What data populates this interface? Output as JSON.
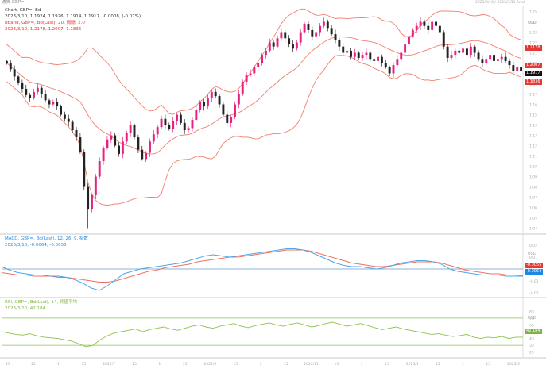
{
  "header": {
    "top_left": "通貨 GBP=",
    "top_right": "2023/3/10 / 2023/3/11 Arial"
  },
  "panels": {
    "price": {
      "title": "Chart, GBP=, Bd",
      "ohlc_line": "2023/3/10, 1.1924, 1.1926, 1.1914, 1.1917, -0.0008, (-0.07%)",
      "bband_line": "Bband, GBP=, Bd(Last), 20, 間隔, 2.0",
      "bband_values": "2023/3/10, 1.2178, 1.2007, 1.1836",
      "yaxis_label": "USD",
      "price_tags": [
        {
          "text": "1.2178",
          "color": "#e53935"
        },
        {
          "text": "1.2007",
          "color": "#e53935"
        },
        {
          "text": "1.1917",
          "color": "#111111"
        },
        {
          "text": "1.1836",
          "color": "#e53935"
        }
      ],
      "colors": {
        "up": "#e6217f",
        "down": "#222222",
        "band": "#f08070"
      }
    },
    "macd": {
      "title": "MACD, GBP=, Bd(Last), 12, 26, 9, 指数",
      "values": "2023/3/10, -0.0064, -0.0055",
      "yaxis_label": "USD",
      "tags": [
        {
          "text": "-0.0055",
          "color": "#e53935"
        },
        {
          "text": "-0.0064",
          "color": "#1e88e5"
        }
      ],
      "colors": {
        "macd": "#4da6e8",
        "signal": "#f07060",
        "zero": "#6699cc"
      }
    },
    "rsi": {
      "title": "RSI, GBP=, Bd(Last), 14, 終値平均",
      "values": "2023/3/10, 42.184",
      "yaxis_label": "USD",
      "tag": {
        "text": "42.184",
        "color": "#7cb342"
      },
      "colors": {
        "line": "#8bc34a",
        "band": "#8bc34a"
      }
    }
  },
  "chart_data": {
    "type": "candlestick",
    "instrument": "GBP=",
    "price_yaxis_ticks": [
      "1.25",
      "1.24",
      "1.23",
      "1.22",
      "1.21",
      "1.20",
      "1.19",
      "1.18",
      "1.17",
      "1.16",
      "1.15",
      "1.14",
      "1.13",
      "1.12",
      "1.11",
      "1.10",
      "1.09",
      "1.08",
      "1.07",
      "1.06",
      "1.05",
      "1.04"
    ],
    "price_ylim": [
      1.035,
      1.255
    ],
    "macd_yaxis_ticks": [
      "0.02",
      "0.01",
      "0",
      "-0.01",
      "-0.02"
    ],
    "rsi_yaxis_ticks": [
      "80",
      "70",
      "60",
      "50",
      "40",
      "30",
      "20"
    ],
    "x_ticks": [
      "29",
      "15",
      "1",
      "15",
      "2022/7",
      "15",
      "1",
      "15",
      "2022/9",
      "15",
      "1",
      "15",
      "2022/11",
      "15",
      "1",
      "15",
      "2023/1",
      "15",
      "1",
      "15",
      "2023/3"
    ],
    "close": [
      1.2,
      1.194,
      1.187,
      1.181,
      1.175,
      1.169,
      1.166,
      1.172,
      1.176,
      1.17,
      1.164,
      1.16,
      1.162,
      1.158,
      1.15,
      1.146,
      1.143,
      1.135,
      1.128,
      1.114,
      1.08,
      1.058,
      1.072,
      1.09,
      1.105,
      1.118,
      1.126,
      1.13,
      1.12,
      1.112,
      1.124,
      1.132,
      1.14,
      1.128,
      1.116,
      1.107,
      1.113,
      1.124,
      1.131,
      1.138,
      1.146,
      1.14,
      1.136,
      1.144,
      1.15,
      1.142,
      1.135,
      1.137,
      1.145,
      1.155,
      1.162,
      1.158,
      1.166,
      1.172,
      1.168,
      1.16,
      1.15,
      1.142,
      1.148,
      1.16,
      1.17,
      1.182,
      1.188,
      1.19,
      1.196,
      1.2,
      1.208,
      1.212,
      1.22,
      1.216,
      1.224,
      1.23,
      1.224,
      1.218,
      1.214,
      1.22,
      1.23,
      1.238,
      1.232,
      1.226,
      1.23,
      1.236,
      1.24,
      1.234,
      1.228,
      1.222,
      1.216,
      1.21,
      1.212,
      1.206,
      1.21,
      1.205,
      1.208,
      1.21,
      1.204,
      1.202,
      1.206,
      1.2,
      1.196,
      1.19,
      1.198,
      1.204,
      1.21,
      1.218,
      1.226,
      1.232,
      1.236,
      1.24,
      1.236,
      1.232,
      1.24,
      1.236,
      1.23,
      1.216,
      1.205,
      1.208,
      1.212,
      1.21,
      1.214,
      1.208,
      1.216,
      1.21,
      1.204,
      1.2,
      1.204,
      1.208,
      1.202,
      1.204,
      1.206,
      1.202,
      1.198,
      1.192,
      1.196,
      1.192
    ],
    "macd_ylim": [
      -0.022,
      0.022
    ],
    "macd": [
      0.002,
      -0.001,
      -0.003,
      -0.004,
      -0.005,
      -0.005,
      -0.006,
      -0.006,
      -0.007,
      -0.009,
      -0.012,
      -0.016,
      -0.018,
      -0.014,
      -0.009,
      -0.004,
      -0.002,
      0.0,
      0.001,
      0.002,
      0.003,
      0.004,
      0.005,
      0.007,
      0.009,
      0.011,
      0.012,
      0.011,
      0.01,
      0.011,
      0.012,
      0.013,
      0.014,
      0.015,
      0.016,
      0.017,
      0.017,
      0.016,
      0.014,
      0.011,
      0.008,
      0.005,
      0.003,
      0.002,
      0.002,
      0.001,
      0.0,
      0.001,
      0.003,
      0.005,
      0.006,
      0.007,
      0.007,
      0.006,
      0.004,
      0.0,
      -0.002,
      -0.003,
      -0.004,
      -0.005,
      -0.005,
      -0.005,
      -0.006,
      -0.006,
      -0.006
    ],
    "signal": [
      -0.003,
      -0.004,
      -0.005,
      -0.005,
      -0.006,
      -0.006,
      -0.006,
      -0.007,
      -0.007,
      -0.008,
      -0.009,
      -0.01,
      -0.011,
      -0.011,
      -0.01,
      -0.008,
      -0.006,
      -0.004,
      -0.002,
      -0.001,
      0.001,
      0.002,
      0.003,
      0.004,
      0.006,
      0.007,
      0.008,
      0.009,
      0.01,
      0.01,
      0.011,
      0.012,
      0.013,
      0.014,
      0.015,
      0.016,
      0.016,
      0.016,
      0.015,
      0.013,
      0.011,
      0.009,
      0.007,
      0.005,
      0.004,
      0.003,
      0.002,
      0.002,
      0.003,
      0.004,
      0.005,
      0.006,
      0.006,
      0.006,
      0.005,
      0.003,
      0.001,
      -0.001,
      -0.002,
      -0.003,
      -0.004,
      -0.004,
      -0.005,
      -0.005,
      -0.0055
    ],
    "rsi_ylim": [
      15,
      85
    ],
    "rsi_bands": [
      70,
      30
    ],
    "rsi": [
      50,
      48,
      46,
      45,
      47,
      44,
      42,
      41,
      40,
      38,
      36,
      32,
      28,
      30,
      38,
      44,
      48,
      50,
      52,
      54,
      50,
      53,
      55,
      57,
      54,
      52,
      55,
      58,
      60,
      57,
      55,
      58,
      60,
      62,
      58,
      56,
      59,
      61,
      63,
      60,
      58,
      61,
      63,
      60,
      57,
      59,
      62,
      64,
      61,
      58,
      60,
      62,
      59,
      56,
      53,
      55,
      57,
      54,
      52,
      50,
      48,
      46,
      47,
      45,
      43,
      44,
      46,
      42,
      40,
      42,
      41,
      43,
      40,
      42,
      42
    ]
  }
}
